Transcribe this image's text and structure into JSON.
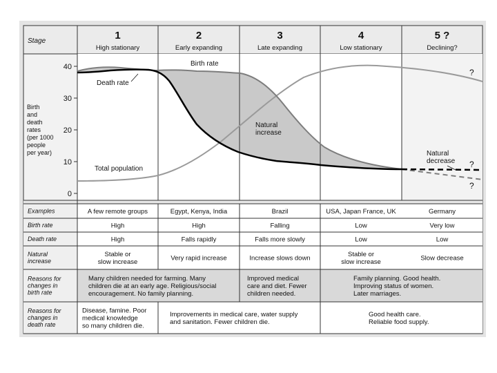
{
  "stage_header": "Stage",
  "stages": [
    {
      "number": "1",
      "name": "High stationary"
    },
    {
      "number": "2",
      "name": "Early expanding"
    },
    {
      "number": "3",
      "name": "Late expanding"
    },
    {
      "number": "4",
      "name": "Low stationary"
    },
    {
      "number": "5 ?",
      "name": "Declining?"
    }
  ],
  "graph": {
    "y_axis_label": [
      "Birth",
      "and",
      "death",
      "rates",
      "(per 1000",
      "people",
      "per year)"
    ],
    "y_ticks": [
      "40",
      "30",
      "20",
      "10",
      "0"
    ],
    "labels": {
      "birth_rate": "Birth rate",
      "death_rate": "Death rate",
      "natural_increase": [
        "Natural",
        "increase"
      ],
      "total_population": "Total population",
      "natural_decrease": [
        "Natural",
        "decrease"
      ],
      "question_mark": "?"
    }
  },
  "table": {
    "rows": [
      {
        "label": [
          "Examples"
        ],
        "cells": [
          [
            "A few remote groups"
          ],
          [
            "Egypt, Kenya, India"
          ],
          [
            "Brazil"
          ],
          [
            "USA, Japan France, UK"
          ],
          [
            "Germany"
          ]
        ]
      },
      {
        "label": [
          "Birth rate"
        ],
        "cells": [
          [
            "High"
          ],
          [
            "High"
          ],
          [
            "Falling"
          ],
          [
            "Low"
          ],
          [
            "Very low"
          ]
        ]
      },
      {
        "label": [
          "Death rate"
        ],
        "cells": [
          [
            "High"
          ],
          [
            "Falls rapidly"
          ],
          [
            "Falls more slowly"
          ],
          [
            "Low"
          ],
          [
            "Low"
          ]
        ]
      },
      {
        "label": [
          "Natural",
          "increase"
        ],
        "cells": [
          [
            "Stable or",
            "slow increase"
          ],
          [
            "Very rapid increase"
          ],
          [
            "Increase slows down"
          ],
          [
            "Stable or",
            "slow increase"
          ],
          [
            "Slow decrease"
          ]
        ]
      }
    ],
    "reasons_birth": {
      "label": [
        "Reasons for",
        "changes in",
        "birth rate"
      ],
      "stage12": [
        "Many children needed for farming. Many",
        "children die at an early age. Religious/social",
        "encouragement. No family planning."
      ],
      "stage3": [
        "Improved medical",
        "care and diet. Fewer",
        "children needed."
      ],
      "stage45": [
        "Family planning. Good health.",
        "Improving status of women.",
        "Later marriages."
      ]
    },
    "reasons_death": {
      "label": [
        "Reasons for",
        "changes in",
        "death rate"
      ],
      "stage1": [
        "Disease, famine. Poor",
        "medical knowledge",
        "so many children die."
      ],
      "stage23": [
        "Improvements in medical care, water supply",
        "and sanitation. Fewer children die."
      ],
      "stage45": [
        "Good health care.",
        "Reliable food supply."
      ]
    }
  },
  "colors": {
    "shading": "#c9c9c9",
    "birth_line": "#7d7d7d",
    "death_line": "#000000",
    "population_line": "#9a9a9a",
    "border": "#333333"
  }
}
